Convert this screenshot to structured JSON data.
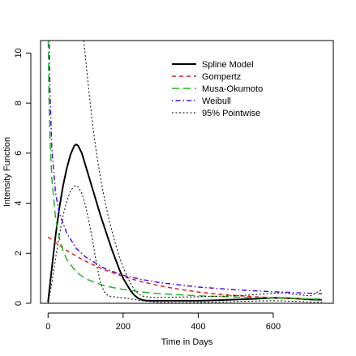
{
  "chart_data": {
    "type": "line",
    "title": "",
    "xlabel": "Time in Days",
    "ylabel": "Intensity Function",
    "xlim": [
      -20,
      760
    ],
    "ylim": [
      0,
      10.5
    ],
    "xticks": [
      0,
      200,
      400,
      600
    ],
    "yticks": [
      0,
      2,
      4,
      6,
      8,
      10
    ],
    "grid": false,
    "legend_position": "top-right",
    "series": [
      {
        "name": "Spline Model",
        "color": "#000000",
        "dash": "solid",
        "x": [
          0,
          10,
          20,
          30,
          40,
          50,
          60,
          70,
          75,
          80,
          90,
          100,
          110,
          120,
          130,
          140,
          150,
          160,
          170,
          180,
          190,
          200,
          210,
          220,
          230,
          240,
          250,
          260,
          280,
          300,
          350,
          400,
          450,
          500,
          550,
          600,
          650,
          700,
          730
        ],
        "y": [
          0.05,
          1.4,
          2.7,
          3.8,
          4.7,
          5.4,
          5.95,
          6.3,
          6.35,
          6.3,
          6.0,
          5.5,
          5.0,
          4.5,
          4.0,
          3.5,
          3.05,
          2.6,
          2.15,
          1.75,
          1.35,
          1.0,
          0.75,
          0.5,
          0.32,
          0.2,
          0.14,
          0.11,
          0.1,
          0.1,
          0.1,
          0.1,
          0.12,
          0.15,
          0.18,
          0.22,
          0.2,
          0.15,
          0.14
        ]
      },
      {
        "name": "Gompertz",
        "color": "#e41a1c",
        "dash": "dashed",
        "x": [
          0,
          50,
          100,
          150,
          200,
          250,
          300,
          350,
          400,
          450,
          500,
          550,
          600,
          650,
          700,
          730
        ],
        "y": [
          2.65,
          2.1,
          1.68,
          1.34,
          1.07,
          0.86,
          0.69,
          0.56,
          0.45,
          0.37,
          0.31,
          0.26,
          0.22,
          0.19,
          0.16,
          0.15
        ]
      },
      {
        "name": "Musa-Okumoto",
        "color": "#1fb71f",
        "dash": "longdash",
        "x": [
          0.5,
          1,
          2,
          5,
          10,
          20,
          30,
          40,
          50,
          75,
          100,
          150,
          200,
          250,
          300,
          400,
          500,
          600,
          700,
          730
        ],
        "y": [
          10.5,
          9.8,
          8.6,
          6.6,
          5.0,
          3.4,
          2.6,
          2.1,
          1.75,
          1.25,
          0.98,
          0.7,
          0.55,
          0.45,
          0.38,
          0.3,
          0.25,
          0.21,
          0.18,
          0.17
        ]
      },
      {
        "name": "Weibull",
        "color": "#4b14e6",
        "dash": "dotdash",
        "x": [
          3,
          5,
          10,
          20,
          30,
          50,
          75,
          100,
          150,
          200,
          250,
          300,
          400,
          500,
          600,
          700,
          730
        ],
        "y": [
          10.5,
          8.5,
          6.2,
          4.4,
          3.6,
          2.8,
          2.2,
          1.85,
          1.4,
          1.12,
          0.95,
          0.82,
          0.65,
          0.54,
          0.46,
          0.4,
          0.38
        ]
      },
      {
        "name": "95% Pointwise",
        "color": "#000000",
        "dash": "dotted",
        "x": [
          95,
          100,
          110,
          120,
          130,
          140,
          150,
          160,
          170,
          180,
          190,
          200,
          210,
          220,
          230,
          240,
          250,
          260,
          280,
          300,
          350,
          400,
          450,
          500,
          550,
          600,
          630,
          660,
          700,
          730
        ],
        "y": [
          10.5,
          9.8,
          8.3,
          7.0,
          5.9,
          5.0,
          4.2,
          3.5,
          2.9,
          2.35,
          1.85,
          1.45,
          1.1,
          0.8,
          0.55,
          0.38,
          0.3,
          0.26,
          0.24,
          0.24,
          0.25,
          0.26,
          0.28,
          0.3,
          0.34,
          0.4,
          0.42,
          0.35,
          0.3,
          0.55
        ]
      },
      {
        "name": "",
        "color": "#000000",
        "dash": "dotted",
        "x": [
          0,
          10,
          20,
          30,
          40,
          50,
          60,
          70,
          75,
          80,
          90,
          100,
          110,
          120,
          130,
          140,
          150,
          160,
          170,
          180,
          200,
          250,
          300,
          350,
          400,
          450,
          500,
          550,
          600,
          650,
          700,
          730
        ],
        "y": [
          0.0,
          0.8,
          1.8,
          2.7,
          3.5,
          4.1,
          4.5,
          4.68,
          4.7,
          4.65,
          4.4,
          3.9,
          3.2,
          2.4,
          1.5,
          0.8,
          0.45,
          0.3,
          0.27,
          0.25,
          0.22,
          0.1,
          0.03,
          0.02,
          0.03,
          0.05,
          0.07,
          0.09,
          0.1,
          0.08,
          0.05,
          0.05
        ]
      }
    ]
  }
}
